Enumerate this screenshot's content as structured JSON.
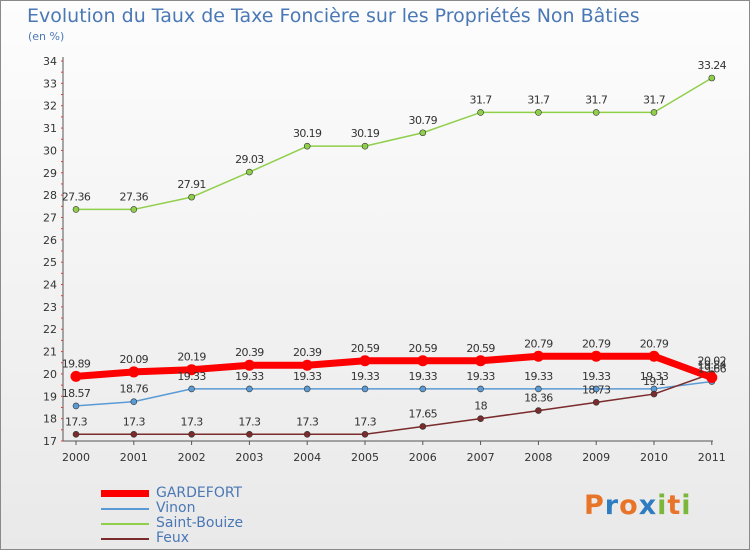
{
  "header": {
    "title": "Evolution du Taux de Taxe Foncière sur les Propriétés Non Bâties",
    "unit": "(en %)"
  },
  "logo": {
    "text": "Proxiti",
    "colors": [
      "#e8742a",
      "#2f7cc1",
      "#e8742a",
      "#2f7cc1",
      "#7ab73a",
      "#e8742a",
      "#7ab73a"
    ]
  },
  "chart_data": {
    "type": "line",
    "title": "Evolution du Taux de Taxe Foncière sur les Propriétés Non Bâties",
    "ylabel": "(en %)",
    "x": [
      "2000",
      "2001",
      "2002",
      "2003",
      "2004",
      "2005",
      "2006",
      "2007",
      "2008",
      "2009",
      "2010",
      "2011"
    ],
    "ylim": [
      17,
      34
    ],
    "yticks": [
      "17",
      "18",
      "19",
      "20",
      "21",
      "22",
      "23",
      "24",
      "25",
      "26",
      "27",
      "28",
      "29",
      "30",
      "31",
      "32",
      "33",
      "34"
    ],
    "grid": false,
    "legend_position": "bottom-left",
    "series": [
      {
        "name": "GARDEFORT",
        "color": "#ff0000",
        "values": [
          19.89,
          20.09,
          20.19,
          20.39,
          20.39,
          20.59,
          20.59,
          20.59,
          20.79,
          20.79,
          20.79,
          19.84
        ],
        "labels": [
          "19.89",
          "20.09",
          "20.19",
          "20.39",
          "20.39",
          "20.59",
          "20.59",
          "20.59",
          "20.79",
          "20.79",
          "20.79",
          "19.84"
        ]
      },
      {
        "name": "Vinon",
        "color": "#5a9bd5",
        "values": [
          18.57,
          18.76,
          19.33,
          19.33,
          19.33,
          19.33,
          19.33,
          19.33,
          19.33,
          19.33,
          19.33,
          19.66
        ],
        "labels": [
          "18.57",
          "18.76",
          "19.33",
          "19.33",
          "19.33",
          "19.33",
          "19.33",
          "19.33",
          "19.33",
          "19.33",
          "19.33",
          "19.66"
        ]
      },
      {
        "name": "Saint-Bouize",
        "color": "#8fcf4a",
        "values": [
          27.36,
          27.36,
          27.91,
          29.03,
          30.19,
          30.19,
          30.79,
          31.7,
          31.7,
          31.7,
          31.7,
          33.24
        ],
        "labels": [
          "27.36",
          "27.36",
          "27.91",
          "29.03",
          "30.19",
          "30.19",
          "30.79",
          "31.7",
          "31.7",
          "31.7",
          "31.7",
          "33.24"
        ]
      },
      {
        "name": "Feux",
        "color": "#7a2b2b",
        "values": [
          17.3,
          17.3,
          17.3,
          17.3,
          17.3,
          17.3,
          17.65,
          18.0,
          18.36,
          18.73,
          19.1,
          20.02
        ],
        "labels": [
          "17.3",
          "17.3",
          "17.3",
          "17.3",
          "17.3",
          "17.3",
          "17.65",
          "18",
          "18.36",
          "18.73",
          "19.1",
          "20.02"
        ]
      }
    ]
  }
}
